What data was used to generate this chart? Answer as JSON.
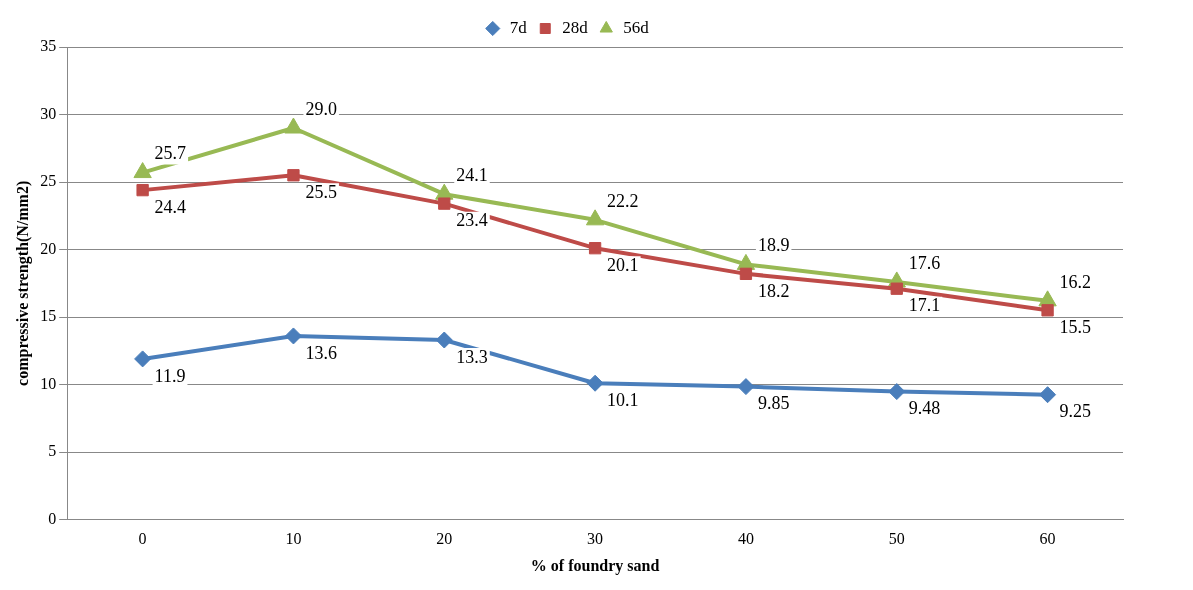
{
  "chart_data": {
    "type": "line",
    "xlabel": "% of foundry sand",
    "ylabel": "compressive strength(N/mm2)",
    "categories": [
      "0",
      "10",
      "20",
      "30",
      "40",
      "50",
      "60"
    ],
    "series": [
      {
        "name": "7d",
        "color": "#4a7ebb",
        "marker": "diamond",
        "values": [
          11.9,
          13.6,
          13.3,
          10.1,
          9.85,
          9.48,
          9.25
        ]
      },
      {
        "name": "28d",
        "color": "#be4b48",
        "marker": "square",
        "values": [
          24.4,
          25.5,
          23.4,
          20.1,
          18.2,
          17.1,
          15.5
        ]
      },
      {
        "name": "56d",
        "color": "#98b954",
        "marker": "triangle",
        "values": [
          25.7,
          29.0,
          24.1,
          22.2,
          18.9,
          17.6,
          16.2
        ],
        "value_labels": [
          "25.7",
          "29.0",
          "24.1",
          "22.2",
          "18.9",
          "17.6",
          "16.2"
        ]
      }
    ],
    "ylim": [
      0,
      35
    ],
    "yticks": [
      0,
      5,
      10,
      15,
      20,
      25,
      30,
      35
    ],
    "grid": "y",
    "legend": "top",
    "data_labels": true,
    "line_style": "solid"
  }
}
